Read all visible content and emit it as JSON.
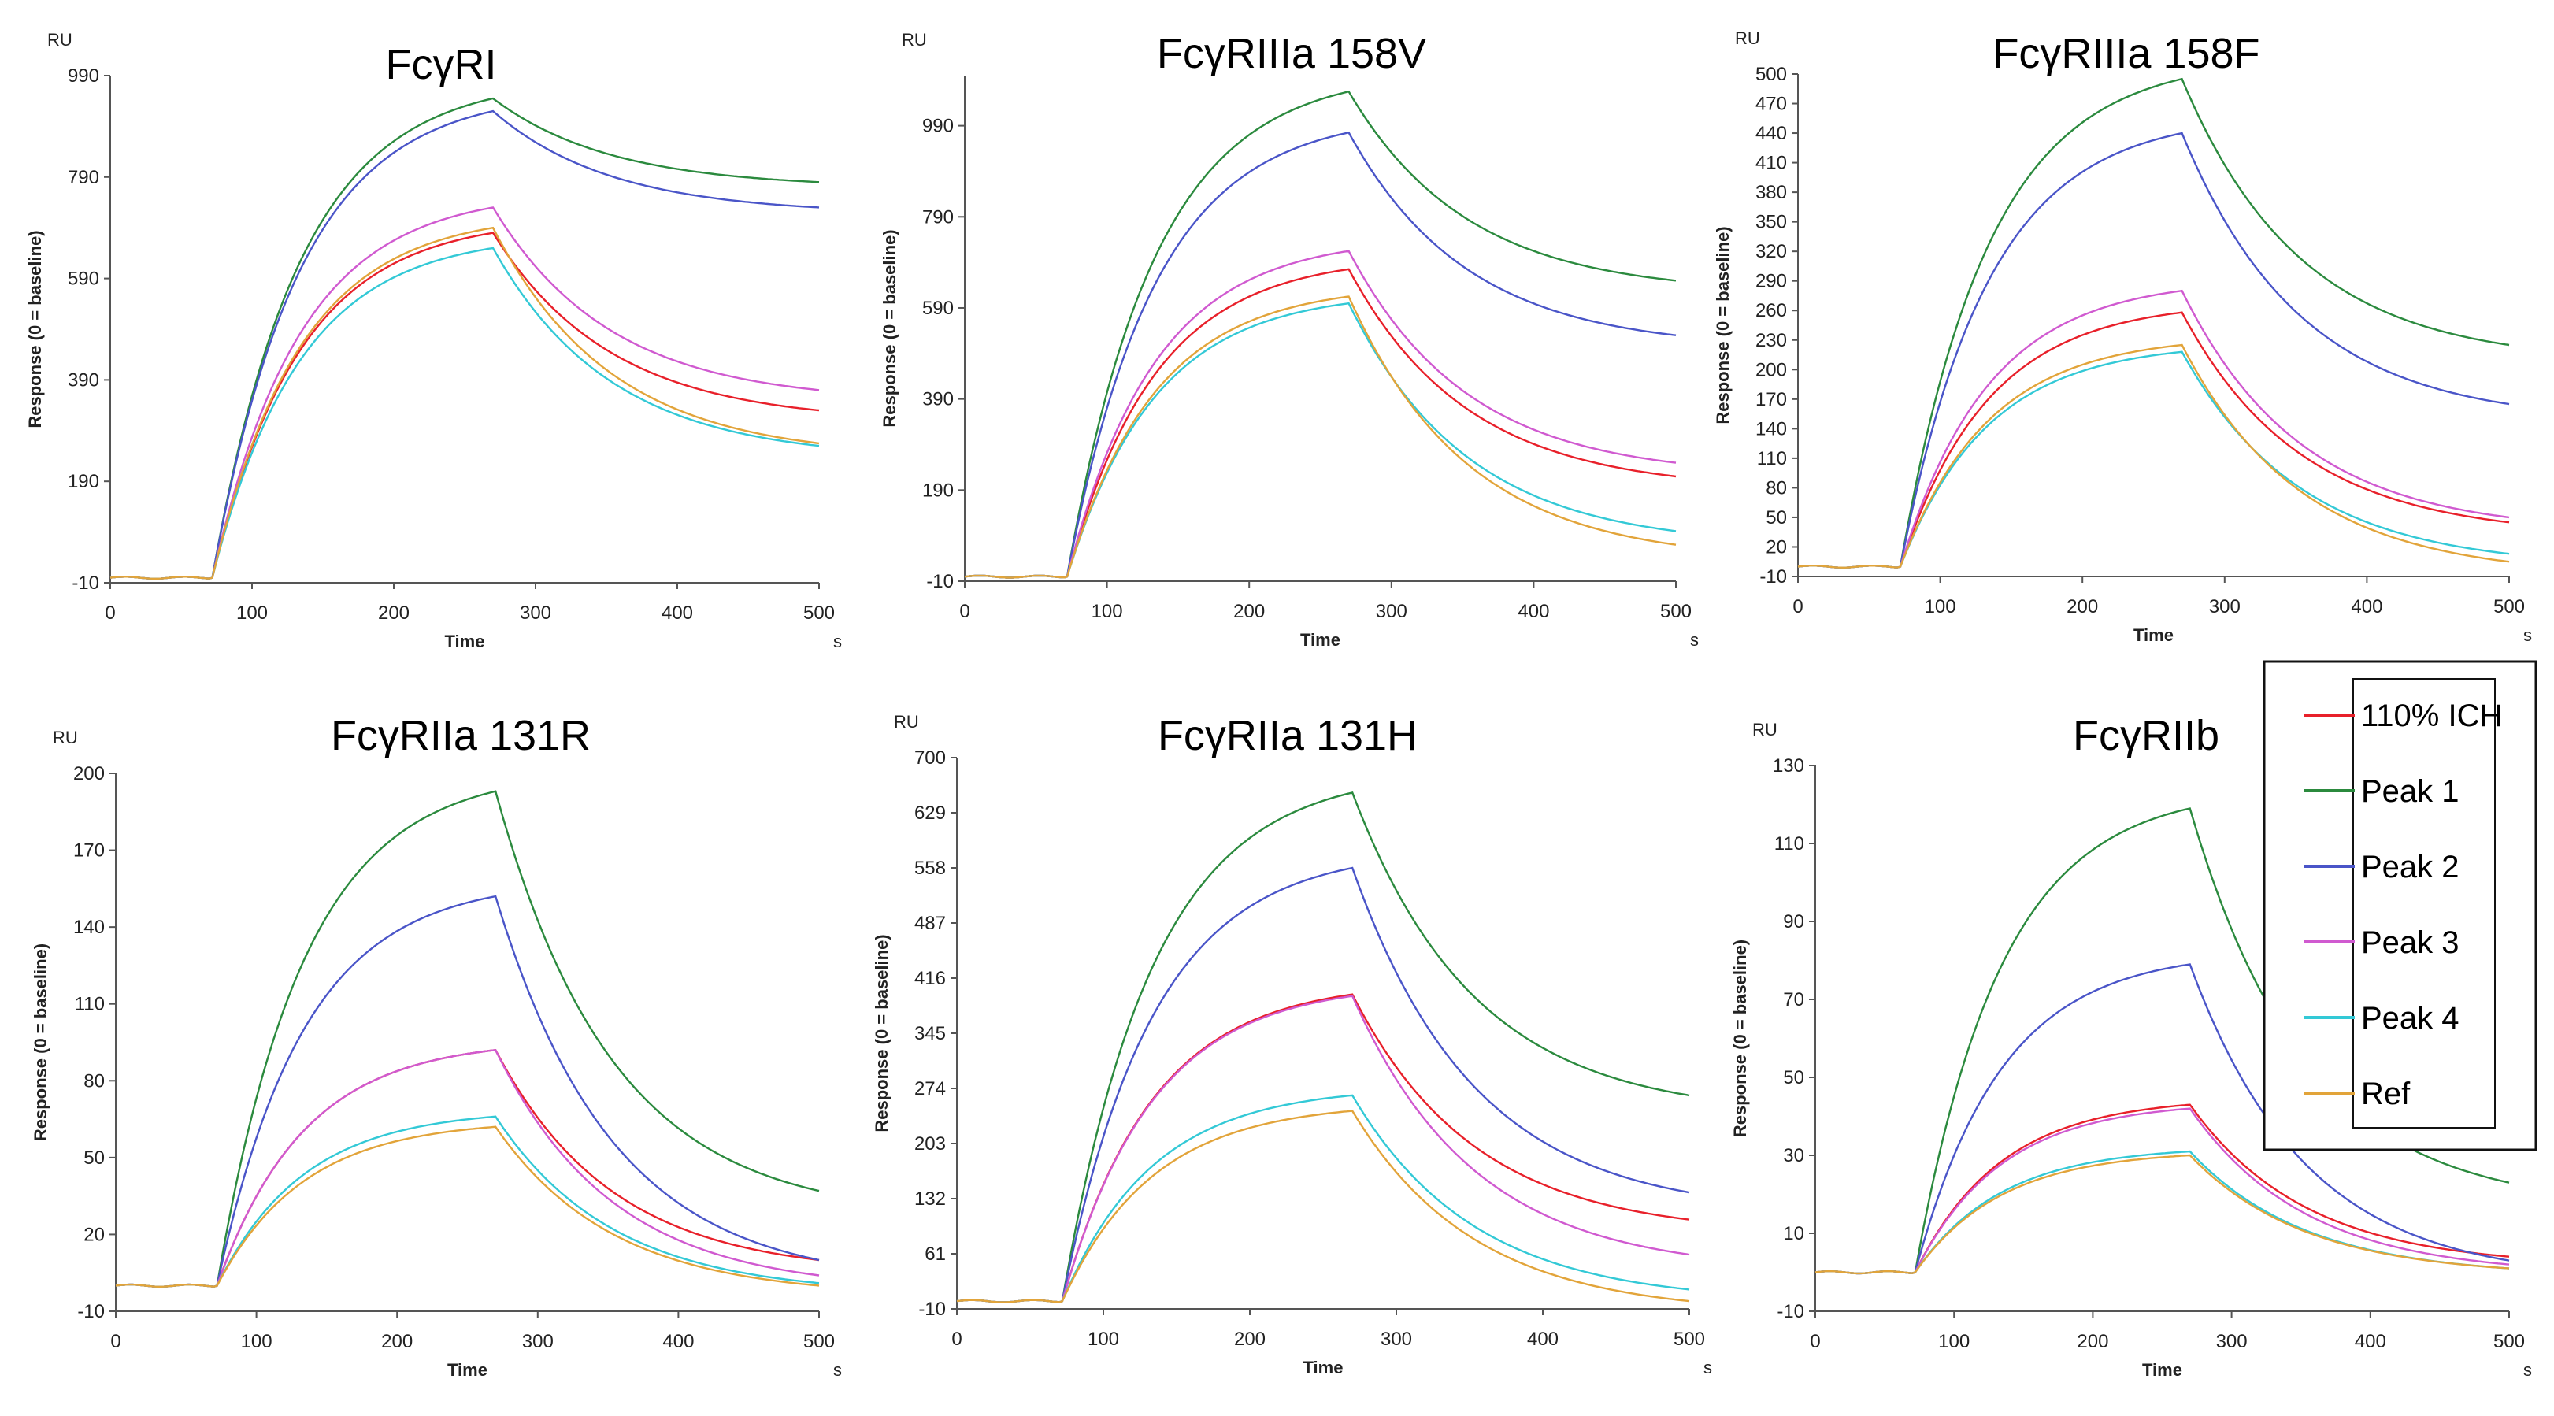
{
  "series_colors": {
    "110% ICH": "#e8202a",
    "Peak 1": "#2b8a3e",
    "Peak 2": "#4a55c8",
    "Peak 3": "#d05ad0",
    "Peak 4": "#33c9d6",
    "Ref": "#e2a43a"
  },
  "legend": {
    "items": [
      "110% ICH",
      "Peak 1",
      "Peak 2",
      "Peak 3",
      "Peak 4",
      "Ref"
    ]
  },
  "chart_data": [
    {
      "type": "line",
      "title": "FcγRI",
      "xlabel": "Time",
      "ylabel": "Response (0 = baseline)",
      "y_unit": "RU",
      "x_unit": "s",
      "xlim": [
        0,
        500
      ],
      "ylim": [
        -10,
        990
      ],
      "xticks": [
        0,
        100,
        200,
        300,
        400,
        500
      ],
      "yticks": [
        -10,
        190,
        390,
        590,
        790,
        990
      ],
      "assoc_start": 72,
      "assoc_end": 270,
      "series": [
        {
          "name": "110% ICH",
          "plateau": 680,
          "end": 330
        },
        {
          "name": "Peak 1",
          "plateau": 945,
          "end": 780
        },
        {
          "name": "Peak 2",
          "plateau": 920,
          "end": 730
        },
        {
          "name": "Peak 3",
          "plateau": 730,
          "end": 370
        },
        {
          "name": "Peak 4",
          "plateau": 650,
          "end": 260
        },
        {
          "name": "Ref",
          "plateau": 690,
          "end": 265
        }
      ]
    },
    {
      "type": "line",
      "title": "FcγRIIIa 158V",
      "xlabel": "Time",
      "ylabel": "Response (0 = baseline)",
      "y_unit": "RU",
      "x_unit": "s",
      "xlim": [
        0,
        500
      ],
      "ylim": [
        -10,
        1100
      ],
      "xticks": [
        0,
        100,
        200,
        300,
        400,
        500
      ],
      "yticks": [
        -10,
        190,
        390,
        590,
        790,
        990
      ],
      "assoc_start": 72,
      "assoc_end": 270,
      "series": [
        {
          "name": "110% ICH",
          "plateau": 675,
          "end": 220
        },
        {
          "name": "Peak 1",
          "plateau": 1065,
          "end": 650
        },
        {
          "name": "Peak 2",
          "plateau": 975,
          "end": 530
        },
        {
          "name": "Peak 3",
          "plateau": 715,
          "end": 250
        },
        {
          "name": "Peak 4",
          "plateau": 600,
          "end": 100
        },
        {
          "name": "Ref",
          "plateau": 615,
          "end": 70
        }
      ]
    },
    {
      "type": "line",
      "title": "FcγRIIIa 158F",
      "xlabel": "Time",
      "ylabel": "Response (0 = baseline)",
      "y_unit": "RU",
      "x_unit": "s",
      "xlim": [
        0,
        500
      ],
      "ylim": [
        -10,
        500
      ],
      "xticks": [
        0,
        100,
        200,
        300,
        400,
        500
      ],
      "yticks": [
        -10,
        20,
        50,
        80,
        110,
        140,
        170,
        200,
        230,
        260,
        290,
        320,
        350,
        380,
        410,
        440,
        470,
        500
      ],
      "assoc_start": 72,
      "assoc_end": 270,
      "series": [
        {
          "name": "110% ICH",
          "plateau": 258,
          "end": 45
        },
        {
          "name": "Peak 1",
          "plateau": 495,
          "end": 225
        },
        {
          "name": "Peak 2",
          "plateau": 440,
          "end": 165
        },
        {
          "name": "Peak 3",
          "plateau": 280,
          "end": 50
        },
        {
          "name": "Peak 4",
          "plateau": 218,
          "end": 13
        },
        {
          "name": "Ref",
          "plateau": 225,
          "end": 5
        }
      ]
    },
    {
      "type": "line",
      "title": "FcγRIIa 131R",
      "xlabel": "Time",
      "ylabel": "Response (0 = baseline)",
      "y_unit": "RU",
      "x_unit": "s",
      "xlim": [
        0,
        500
      ],
      "ylim": [
        -10,
        200
      ],
      "xticks": [
        0,
        100,
        200,
        300,
        400,
        500
      ],
      "yticks": [
        -10,
        20,
        50,
        80,
        110,
        140,
        170,
        200
      ],
      "assoc_start": 72,
      "assoc_end": 270,
      "series": [
        {
          "name": "110% ICH",
          "plateau": 92,
          "end": 10
        },
        {
          "name": "Peak 1",
          "plateau": 193,
          "end": 37
        },
        {
          "name": "Peak 2",
          "plateau": 152,
          "end": 10
        },
        {
          "name": "Peak 3",
          "plateau": 92,
          "end": 4
        },
        {
          "name": "Peak 4",
          "plateau": 66,
          "end": 1
        },
        {
          "name": "Ref",
          "plateau": 62,
          "end": 0
        }
      ]
    },
    {
      "type": "line",
      "title": "FcγRIIa 131H",
      "xlabel": "Time",
      "ylabel": "Response (0 = baseline)",
      "y_unit": "RU",
      "x_unit": "s",
      "xlim": [
        0,
        500
      ],
      "ylim": [
        -10,
        700
      ],
      "xticks": [
        0,
        100,
        200,
        300,
        400,
        500
      ],
      "yticks": [
        -10,
        61,
        132,
        203,
        274,
        345,
        416,
        487,
        558,
        629,
        700
      ],
      "assoc_start": 72,
      "assoc_end": 270,
      "series": [
        {
          "name": "110% ICH",
          "plateau": 395,
          "end": 105
        },
        {
          "name": "Peak 1",
          "plateau": 655,
          "end": 265
        },
        {
          "name": "Peak 2",
          "plateau": 558,
          "end": 140
        },
        {
          "name": "Peak 3",
          "plateau": 393,
          "end": 60
        },
        {
          "name": "Peak 4",
          "plateau": 265,
          "end": 15
        },
        {
          "name": "Ref",
          "plateau": 245,
          "end": 0
        }
      ]
    },
    {
      "type": "line",
      "title": "FcγRIIb",
      "xlabel": "Time",
      "ylabel": "Response (0 = baseline)",
      "y_unit": "RU",
      "x_unit": "s",
      "xlim": [
        0,
        500
      ],
      "ylim": [
        -10,
        130
      ],
      "xticks": [
        0,
        100,
        200,
        300,
        400,
        500
      ],
      "yticks": [
        -10,
        10,
        30,
        50,
        70,
        90,
        110,
        130
      ],
      "assoc_start": 72,
      "assoc_end": 270,
      "series": [
        {
          "name": "110% ICH",
          "plateau": 43,
          "end": 4
        },
        {
          "name": "Peak 1",
          "plateau": 119,
          "end": 23
        },
        {
          "name": "Peak 2",
          "plateau": 79,
          "end": 3
        },
        {
          "name": "Peak 3",
          "plateau": 42,
          "end": 2
        },
        {
          "name": "Peak 4",
          "plateau": 31,
          "end": 1
        },
        {
          "name": "Ref",
          "plateau": 30,
          "end": 1
        }
      ]
    }
  ]
}
